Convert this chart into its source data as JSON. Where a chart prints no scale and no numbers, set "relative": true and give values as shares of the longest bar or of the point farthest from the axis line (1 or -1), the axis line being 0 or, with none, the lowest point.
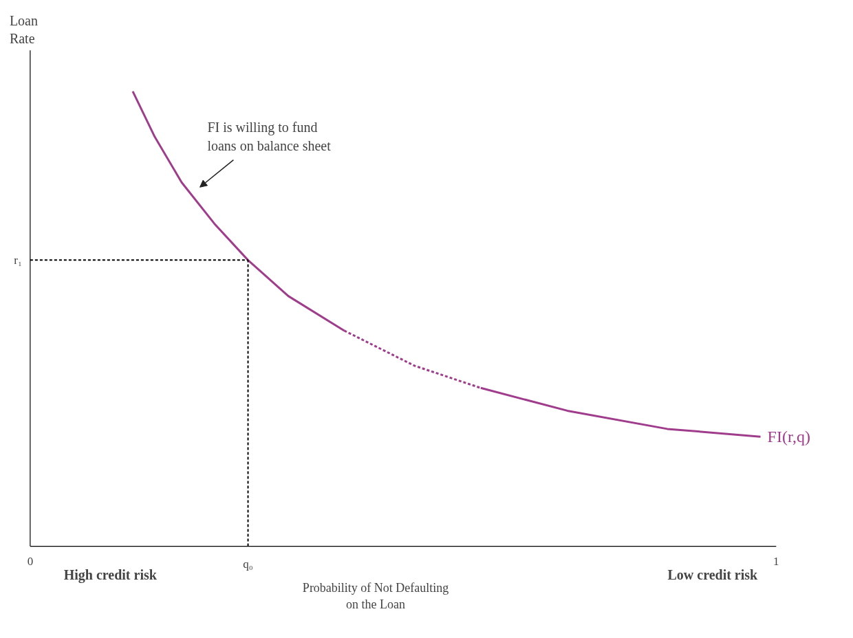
{
  "chart_data": {
    "type": "line",
    "relative": true,
    "xlabel": "Probability of Not Defaulting\non the Loan",
    "ylabel": "Loan\nRate",
    "xlim": [
      0,
      1
    ],
    "xticks": [
      0,
      {
        "value": 0.292,
        "label": "q₀"
      },
      1
    ],
    "grid": false,
    "marker": "none",
    "color": "#a03c8c",
    "series": [
      {
        "x": [
          0.1375,
          0.167,
          0.203,
          0.247,
          0.292,
          0.346,
          0.421
        ],
        "values": [
          1.0,
          0.9,
          0.8,
          0.709,
          0.629,
          0.55,
          0.474
        ],
        "line_style": "solid"
      },
      {
        "x": [
          0.421,
          0.515,
          0.604
        ],
        "values": [
          0.474,
          0.397,
          0.348
        ],
        "line_style": "dashed"
      },
      {
        "name": "FI(r,q)",
        "x": [
          0.604,
          0.72,
          0.854,
          0.979
        ],
        "values": [
          0.348,
          0.298,
          0.258,
          0.241
        ],
        "line_style": "solid"
      }
    ],
    "ref_lines": [
      {
        "axis": "x",
        "value": 0.292,
        "line_style": "dashed",
        "color": "#000000"
      },
      {
        "axis": "y",
        "value": 0.629,
        "label": "r₁",
        "line_style": "dashed",
        "color": "#000000"
      }
    ],
    "annotations": [
      "FI is willing to fund\nloans on balance sheet",
      "High credit risk",
      "Low credit risk"
    ]
  }
}
